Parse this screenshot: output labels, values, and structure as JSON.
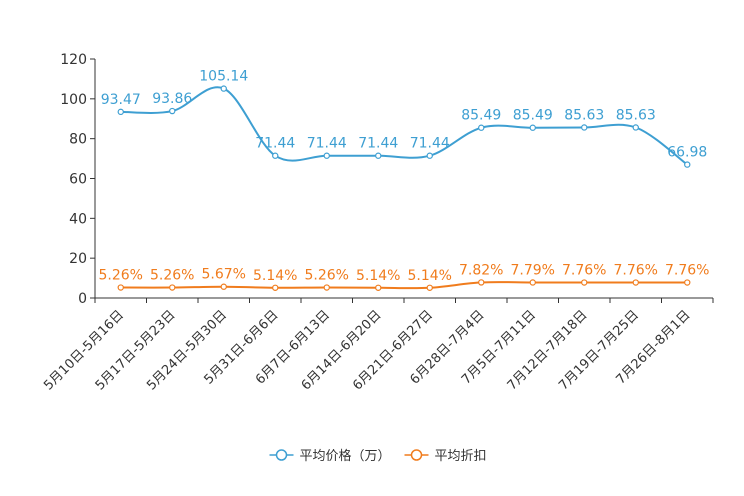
{
  "chart_data": {
    "type": "line",
    "categories": [
      "5月10日-5月16日",
      "5月17日-5月23日",
      "5月24日-5月30日",
      "5月31日-6月6日",
      "6月7日-6月13日",
      "6月14日-6月20日",
      "6月21日-6月27日",
      "6月28日-7月4日",
      "7月5日-7月11日",
      "7月12日-7月18日",
      "7月19日-7月25日",
      "7月26日-8月1日"
    ],
    "ylim": [
      0,
      120
    ],
    "yticks": [
      0,
      20,
      40,
      60,
      80,
      100,
      120
    ],
    "series": [
      {
        "name": "平均价格（万）",
        "color": "#3e9fd2",
        "values": [
          93.47,
          93.86,
          105.14,
          71.44,
          71.44,
          71.44,
          71.44,
          85.49,
          85.49,
          85.63,
          85.63,
          66.98
        ],
        "labels": [
          "93.47",
          "93.86",
          "105.14",
          "71.44",
          "71.44",
          "71.44",
          "71.44",
          "85.49",
          "85.49",
          "85.63",
          "85.63",
          "66.98"
        ]
      },
      {
        "name": "平均折扣",
        "color": "#f07c1d",
        "values": [
          5.26,
          5.26,
          5.67,
          5.14,
          5.26,
          5.14,
          5.14,
          7.82,
          7.79,
          7.76,
          7.76,
          7.76
        ],
        "labels": [
          "5.26%",
          "5.26%",
          "5.67%",
          "5.14%",
          "5.26%",
          "5.14%",
          "5.14%",
          "7.82%",
          "7.79%",
          "7.76%",
          "7.76%",
          "7.76%"
        ]
      }
    ],
    "legend_position": "bottom-center"
  }
}
